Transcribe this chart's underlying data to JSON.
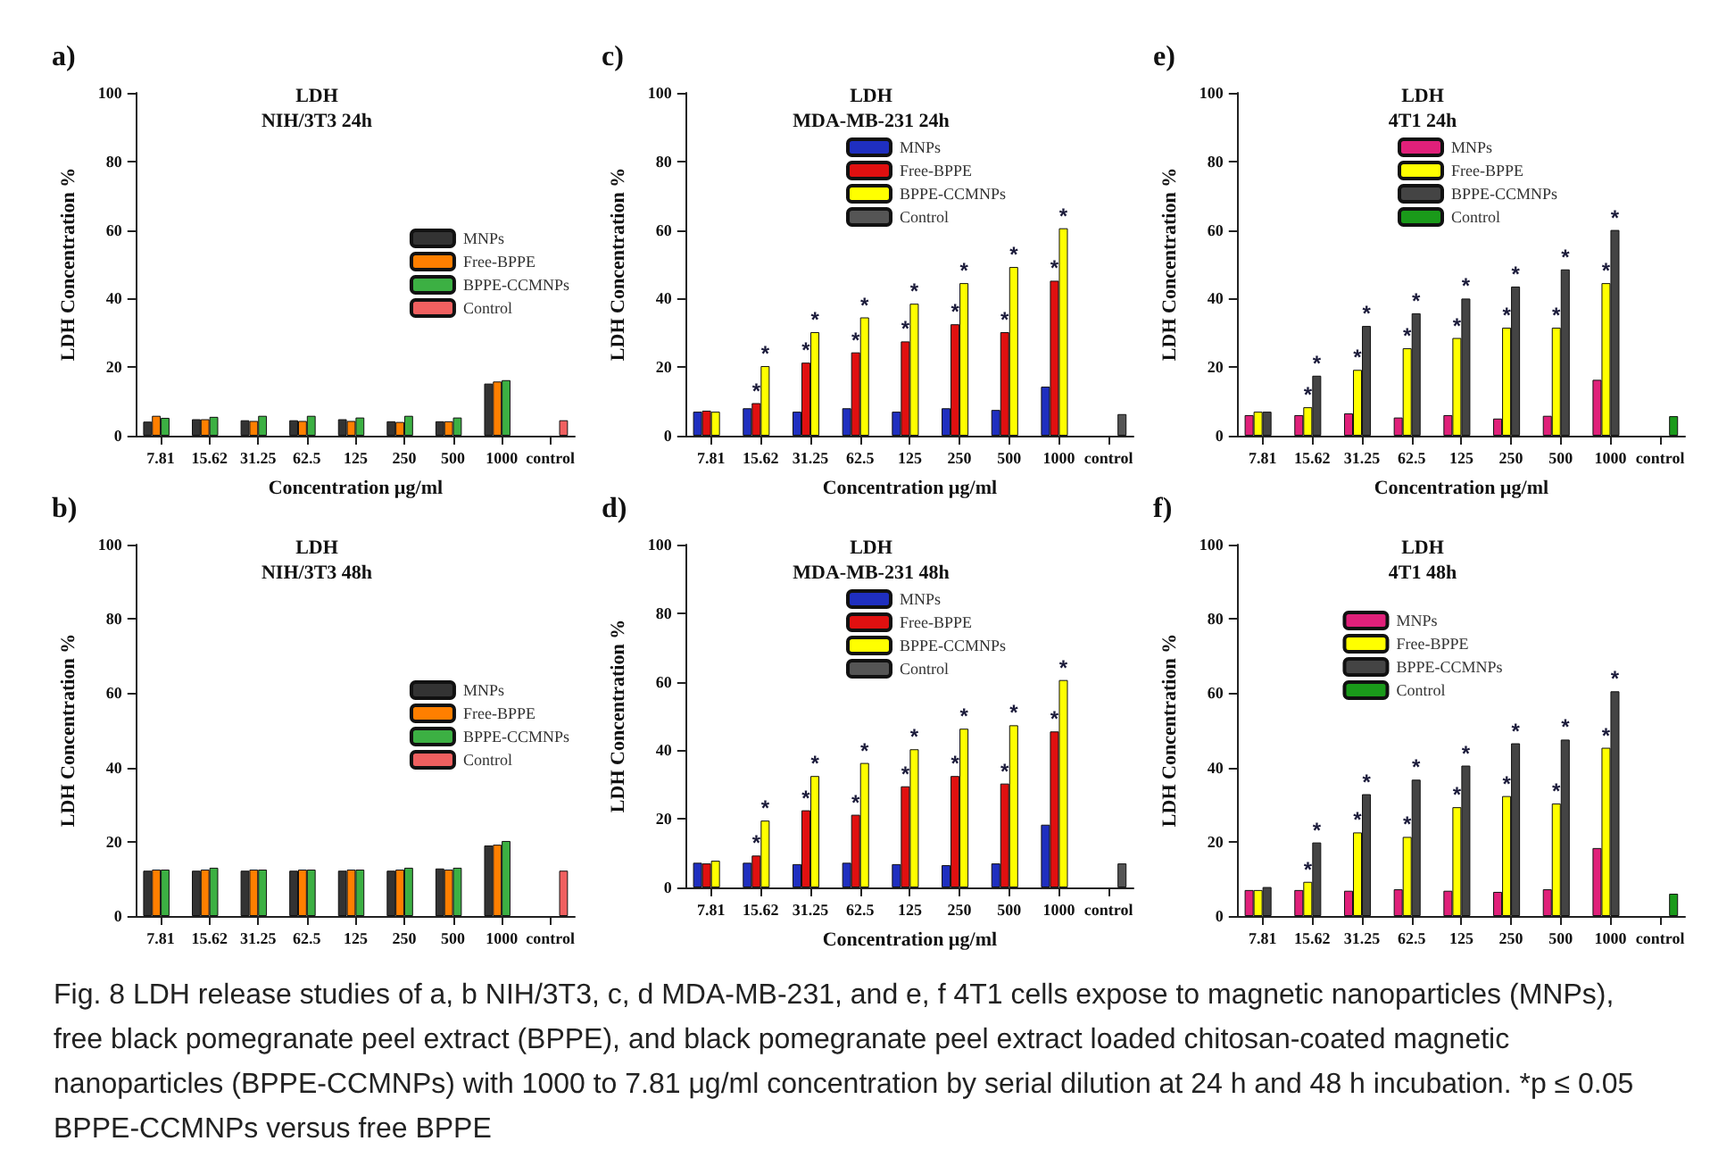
{
  "chart_data": [
    {
      "type": "bar",
      "title": "LDH\nNIH/3T3 24h",
      "xlabel": "Concentration µg/ml",
      "ylabel": "LDH Concentration %",
      "annotations": [
        "a)"
      ],
      "categories": [
        "7.81",
        "15.62",
        "31.25",
        "62.5",
        "125",
        "250",
        "500",
        "1000",
        "control"
      ],
      "ylim": [
        0,
        100
      ],
      "yticks": [
        0,
        20,
        40,
        60,
        80,
        100
      ],
      "legend": "right",
      "series": [
        {
          "name": "MNPs",
          "color": "#333333",
          "values": [
            4.1,
            4.8,
            4.5,
            4.5,
            4.8,
            4.2,
            4.2,
            15.2,
            null
          ]
        },
        {
          "name": "Free-BPPE",
          "color": "#ff7f00",
          "values": [
            5.8,
            4.8,
            4.3,
            4.3,
            4.3,
            4.0,
            4.2,
            15.8,
            null
          ]
        },
        {
          "name": "BPPE-CCMNPs",
          "color": "#3cb043",
          "values": [
            5.2,
            5.5,
            5.8,
            5.8,
            5.3,
            5.8,
            5.3,
            16.2,
            null
          ]
        },
        {
          "name": "Control",
          "color": "#f06060",
          "values": [
            null,
            null,
            null,
            null,
            null,
            null,
            null,
            null,
            4.5
          ]
        }
      ]
    },
    {
      "type": "bar",
      "title": "LDH\nMDA-MB-231 24h",
      "xlabel": "Concentration µg/ml",
      "ylabel": "LDH Concentration %",
      "annotations": [
        "c)"
      ],
      "categories": [
        "7.81",
        "15.62",
        "31.25",
        "62.5",
        "125",
        "250",
        "500",
        "1000",
        "control"
      ],
      "ylim": [
        0,
        100
      ],
      "yticks": [
        0,
        20,
        40,
        60,
        80,
        100
      ],
      "legend": "top right",
      "series": [
        {
          "name": "MNPs",
          "color": "#1f2fc0",
          "values": [
            7,
            8,
            7,
            8,
            7,
            8,
            7.5,
            14.3,
            null
          ]
        },
        {
          "name": "Free-BPPE",
          "color": "#e01010",
          "values": [
            7.3,
            9.5,
            21.3,
            24.3,
            27.5,
            32.5,
            30.2,
            45.2,
            null
          ],
          "value_labels": [
            null,
            "*",
            "*",
            "*",
            "*",
            "*",
            "*",
            "*",
            null
          ]
        },
        {
          "name": "BPPE-CCMNPs",
          "color": "#ffff00",
          "values": [
            7,
            20.3,
            30.2,
            34.5,
            38.5,
            44.5,
            49.2,
            60.5,
            null
          ],
          "value_labels": [
            null,
            "*",
            "*",
            "*",
            "*",
            "*",
            "*",
            "*",
            null
          ]
        },
        {
          "name": "Control",
          "color": "#555555",
          "values": [
            null,
            null,
            null,
            null,
            null,
            null,
            null,
            null,
            6.3
          ]
        }
      ]
    },
    {
      "type": "bar",
      "title": "LDH\n4T1 24h",
      "xlabel": "Concentration µg/ml",
      "ylabel": "LDH Concentration %",
      "annotations": [
        "e)"
      ],
      "categories": [
        "7.81",
        "15.62",
        "31.25",
        "62.5",
        "125",
        "250",
        "500",
        "1000",
        "control"
      ],
      "ylim": [
        0,
        100
      ],
      "yticks": [
        0,
        20,
        40,
        60,
        80,
        100
      ],
      "legend": "top right",
      "series": [
        {
          "name": "MNPs",
          "color": "#e0207a",
          "values": [
            6,
            6,
            6.5,
            5.3,
            6,
            5,
            5.8,
            16.3,
            null
          ]
        },
        {
          "name": "Free-BPPE",
          "color": "#ffff00",
          "values": [
            7,
            8.3,
            19.2,
            25.5,
            28.5,
            31.5,
            31.5,
            44.5,
            null
          ],
          "value_labels": [
            null,
            "*",
            "*",
            "*",
            "*",
            "*",
            "*",
            "*",
            null
          ]
        },
        {
          "name": "BPPE-CCMNPs",
          "color": "#444444",
          "values": [
            7,
            17.5,
            32,
            35.7,
            40,
            43.5,
            48.5,
            60,
            null
          ],
          "value_labels": [
            null,
            "*",
            "*",
            "*",
            "*",
            "*",
            "*",
            "*",
            null
          ]
        },
        {
          "name": "Control",
          "color": "#1a9a1a",
          "values": [
            null,
            null,
            null,
            null,
            null,
            null,
            null,
            null,
            5.7
          ]
        }
      ]
    },
    {
      "type": "bar",
      "title": "LDH\nNIH/3T3 48h",
      "ylabel": "LDH Concentration %",
      "annotations": [
        "b)"
      ],
      "categories": [
        "7.81",
        "15.62",
        "31.25",
        "62.5",
        "125",
        "250",
        "500",
        "1000",
        "control"
      ],
      "ylim": [
        0,
        100
      ],
      "yticks": [
        0,
        20,
        40,
        60,
        80,
        100
      ],
      "legend": "right",
      "series": [
        {
          "name": "MNPs",
          "color": "#333333",
          "values": [
            12.2,
            12.2,
            12.2,
            12.2,
            12.2,
            12.2,
            12.8,
            19,
            null
          ]
        },
        {
          "name": "Free-BPPE",
          "color": "#ff7f00",
          "values": [
            12.5,
            12.5,
            12.5,
            12.5,
            12.5,
            12.5,
            12.5,
            19.2,
            null
          ]
        },
        {
          "name": "BPPE-CCMNPs",
          "color": "#3cb043",
          "values": [
            12.5,
            13,
            12.5,
            12.5,
            12.5,
            13,
            13,
            20.2,
            null
          ]
        },
        {
          "name": "Control",
          "color": "#f06060",
          "values": [
            null,
            null,
            null,
            null,
            null,
            null,
            null,
            null,
            12.2
          ]
        }
      ]
    },
    {
      "type": "bar",
      "title": "LDH\nMDA-MB-231 48h",
      "xlabel": "Concentration µg/ml",
      "ylabel": "LDH Concentration %",
      "annotations": [
        "d)"
      ],
      "categories": [
        "7.81",
        "15.62",
        "31.25",
        "62.5",
        "125",
        "250",
        "500",
        "1000",
        "control"
      ],
      "ylim": [
        0,
        100
      ],
      "yticks": [
        0,
        20,
        40,
        60,
        80,
        100
      ],
      "legend": "top right",
      "series": [
        {
          "name": "MNPs",
          "color": "#1f2fc0",
          "values": [
            7.2,
            7.2,
            6.8,
            7.2,
            6.8,
            6.5,
            7,
            18.3,
            null
          ]
        },
        {
          "name": "Free-BPPE",
          "color": "#e01010",
          "values": [
            7,
            9.3,
            22.5,
            21.2,
            29.5,
            32.5,
            30.3,
            45.5,
            null
          ],
          "value_labels": [
            null,
            "*",
            "*",
            "*",
            "*",
            "*",
            "*",
            "*",
            null
          ]
        },
        {
          "name": "BPPE-CCMNPs",
          "color": "#ffff00",
          "values": [
            7.8,
            19.5,
            32.5,
            36.3,
            40.3,
            46.3,
            47.3,
            60.5,
            null
          ],
          "value_labels": [
            null,
            "*",
            "*",
            "*",
            "*",
            "*",
            "*",
            "*",
            null
          ]
        },
        {
          "name": "Control",
          "color": "#555555",
          "values": [
            null,
            null,
            null,
            null,
            null,
            null,
            null,
            null,
            7
          ]
        }
      ]
    },
    {
      "type": "bar",
      "title": "LDH\n4T1 48h",
      "ylabel": "LDH Concentration %",
      "annotations": [
        "f)"
      ],
      "categories": [
        "7.81",
        "15.62",
        "31.25",
        "62.5",
        "125",
        "250",
        "500",
        "1000",
        "control"
      ],
      "ylim": [
        0,
        100
      ],
      "yticks": [
        0,
        20,
        40,
        60,
        80,
        100
      ],
      "legend": "top",
      "series": [
        {
          "name": "MNPs",
          "color": "#e0207a",
          "values": [
            7,
            7,
            6.8,
            7.2,
            6.8,
            6.5,
            7.2,
            18.3,
            null
          ]
        },
        {
          "name": "Free-BPPE",
          "color": "#ffff00",
          "values": [
            7,
            9.2,
            22.5,
            21.3,
            29.3,
            32.3,
            30.3,
            45.3,
            null
          ],
          "value_labels": [
            null,
            "*",
            "*",
            "*",
            "*",
            "*",
            "*",
            "*",
            null
          ]
        },
        {
          "name": "BPPE-CCMNPs",
          "color": "#444444",
          "values": [
            7.8,
            19.8,
            32.8,
            36.7,
            40.5,
            46.5,
            47.5,
            60.5,
            null
          ],
          "value_labels": [
            null,
            "*",
            "*",
            "*",
            "*",
            "*",
            "*",
            "*",
            null
          ]
        },
        {
          "name": "Control",
          "color": "#1a9a1a",
          "values": [
            null,
            null,
            null,
            null,
            null,
            null,
            null,
            null,
            6
          ]
        }
      ]
    },
    {
      "type": "other",
      "annotations": [
        "Fig. 8  LDH release studies of a, b NIH/3T3, c, d MDA-MB-231, and e, f 4T1 cells expose to magnetic nanoparticles (MNPs), free black pomegranate peel extract (BPPE), and black pomegranate peel extract loaded chitosan-coated magnetic nanoparticles (BPPE-CCMNPs) with 1000 to 7.81 μg/ml concentration by serial dilution at 24 h and 48 h incubation. *p ≤ 0.05 BPPE-CCMNPs versus free BPPE"
      ]
    }
  ]
}
